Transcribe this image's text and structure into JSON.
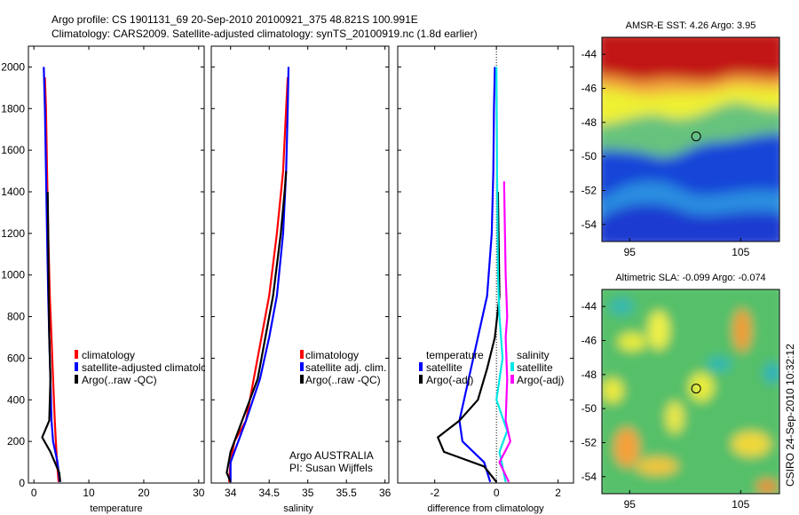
{
  "header": {
    "line1": "Argo profile: CS 1901131_69 20-Sep-2010 20100921_375 48.821S 100.991E",
    "line2": "Climatology: CARS2009. Satellite-adjusted climatology: synTS_20100919.nc (1.8d earlier)"
  },
  "side_label": "CSIRO 24-Sep-2010 10:32:12",
  "colors": {
    "red": "#ff0000",
    "blue": "#0000ff",
    "black": "#000000",
    "cyan": "#00e6e6",
    "magenta": "#ff00ff"
  },
  "chart_data": [
    {
      "type": "line",
      "xlabel": "temperature",
      "ylabel": "",
      "xlim": [
        -1,
        31
      ],
      "ylim": [
        2100,
        0
      ],
      "xticks": [
        "0",
        "10",
        "20",
        "30"
      ],
      "yticks": [
        "0",
        "200",
        "400",
        "600",
        "800",
        "1000",
        "1200",
        "1400",
        "1600",
        "1800",
        "2000"
      ],
      "legend": [
        "climatology",
        "satellite-adjusted climatology",
        "Argo(..raw -QC)"
      ],
      "series": [
        {
          "name": "climatology",
          "color": "red",
          "x": [
            4.5,
            4.2,
            4.0,
            3.8,
            3.5,
            3.2,
            2.9,
            2.6,
            2.4,
            2.2,
            2.0
          ],
          "y": [
            5,
            100,
            200,
            300,
            500,
            700,
            900,
            1200,
            1500,
            1800,
            1950
          ]
        },
        {
          "name": "satellite-adjusted climatology",
          "color": "blue",
          "x": [
            4.7,
            4.3,
            3.5,
            3.2,
            3.0,
            2.8,
            2.6,
            2.4,
            2.2,
            2.0,
            1.8
          ],
          "y": [
            5,
            100,
            200,
            300,
            500,
            700,
            900,
            1200,
            1500,
            1800,
            2000
          ]
        },
        {
          "name": "Argo(..raw -QC)",
          "color": "black",
          "x": [
            4.8,
            4.6,
            3.0,
            1.5,
            2.8,
            3.0,
            2.8,
            2.7,
            2.6,
            2.5
          ],
          "y": [
            5,
            50,
            150,
            220,
            300,
            500,
            700,
            900,
            1200,
            1400
          ]
        }
      ]
    },
    {
      "type": "line",
      "xlabel": "salinity",
      "xlim": [
        33.75,
        36.05
      ],
      "ylim": [
        2100,
        0
      ],
      "xticks": [
        "34",
        "34.5",
        "35",
        "35.5",
        "36"
      ],
      "legend": [
        "climatology",
        "satellite adj. clim.",
        "Argo(..raw -QC)"
      ],
      "annotation": [
        "Argo AUSTRALIA",
        "PI: Susan Wijffels"
      ],
      "series": [
        {
          "name": "climatology",
          "color": "red",
          "x": [
            33.98,
            34.0,
            34.05,
            34.2,
            34.3,
            34.4,
            34.5,
            34.6,
            34.68,
            34.72,
            34.74
          ],
          "y": [
            5,
            100,
            200,
            300,
            500,
            700,
            900,
            1200,
            1500,
            1800,
            1950
          ]
        },
        {
          "name": "satellite adj. clim.",
          "color": "blue",
          "x": [
            34.0,
            34.0,
            34.1,
            34.2,
            34.38,
            34.5,
            34.6,
            34.68,
            34.72,
            34.74,
            34.75
          ],
          "y": [
            5,
            100,
            200,
            300,
            500,
            700,
            900,
            1200,
            1500,
            1800,
            2000
          ]
        },
        {
          "name": "Argo(..raw -QC)",
          "color": "black",
          "x": [
            34.0,
            33.95,
            34.0,
            34.1,
            34.2,
            34.35,
            34.45,
            34.55,
            34.65,
            34.7,
            34.72
          ],
          "y": [
            5,
            50,
            150,
            250,
            350,
            500,
            700,
            900,
            1200,
            1400,
            1500
          ]
        }
      ]
    },
    {
      "type": "line",
      "xlabel": "difference from climatology",
      "xlim": [
        -3.2,
        2.5
      ],
      "ylim": [
        2100,
        0
      ],
      "xticks": [
        "-2",
        "0",
        "2"
      ],
      "legend": [
        "temperature",
        "satellite",
        "Argo(-adj)",
        "salinity",
        "satellite",
        "Argo(-adj)"
      ],
      "series": [
        {
          "name": "temperature satellite",
          "color": "blue",
          "x": [
            -0.2,
            -0.4,
            -1.1,
            -1.2,
            -0.9,
            -0.6,
            -0.3,
            -0.15,
            -0.1,
            -0.08,
            -0.05
          ],
          "y": [
            5,
            100,
            200,
            300,
            500,
            700,
            900,
            1200,
            1500,
            1800,
            2000
          ]
        },
        {
          "name": "temperature Argo(-adj)",
          "color": "black",
          "x": [
            0.0,
            -0.4,
            -1.7,
            -1.9,
            -1.2,
            -0.6,
            -0.3,
            -0.05,
            0.1,
            0.05
          ],
          "y": [
            5,
            80,
            150,
            220,
            300,
            400,
            550,
            700,
            900,
            1400
          ]
        },
        {
          "name": "salinity satellite",
          "color": "cyan",
          "x": [
            0.3,
            0.1,
            0.35,
            0.0,
            0.2,
            0.1,
            0.05,
            0.02,
            0.0
          ],
          "y": [
            5,
            150,
            250,
            400,
            600,
            800,
            1000,
            1500,
            2000
          ]
        },
        {
          "name": "salinity Argo(-adj)",
          "color": "magenta",
          "x": [
            0.4,
            0.1,
            0.45,
            0.3,
            0.35,
            0.3,
            0.35,
            0.3,
            0.25
          ],
          "y": [
            5,
            100,
            200,
            300,
            500,
            700,
            800,
            1000,
            1450
          ]
        }
      ]
    },
    {
      "type": "heatmap",
      "title": "AMSR-E SST: 4.26 Argo: 3.95",
      "xticks": [
        "95",
        "105"
      ],
      "yticks": [
        "-44",
        "-46",
        "-48",
        "-50",
        "-52",
        "-54"
      ],
      "xlim": [
        92.5,
        108.5
      ],
      "ylim": [
        -55,
        -43
      ],
      "marker": {
        "lon": 100.991,
        "lat": -48.821
      }
    },
    {
      "type": "heatmap",
      "title": "Altimetric SLA: -0.099 Argo: -0.074",
      "xticks": [
        "95",
        "105"
      ],
      "yticks": [
        "-44",
        "-46",
        "-48",
        "-50",
        "-52",
        "-54"
      ],
      "xlim": [
        92.5,
        108.5
      ],
      "ylim": [
        -55,
        -43
      ],
      "marker": {
        "lon": 100.991,
        "lat": -48.821
      }
    }
  ]
}
